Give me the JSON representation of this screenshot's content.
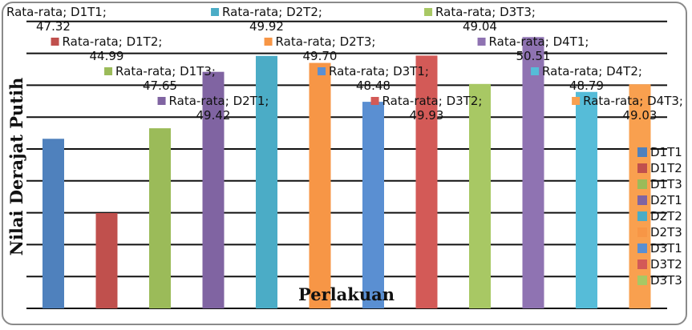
{
  "chart_data": {
    "type": "bar",
    "title": "",
    "xlabel": "Perlakuan",
    "ylabel": "Nilai Derajat Putih",
    "ylim": [
      42,
      51
    ],
    "grid": true,
    "label_prefix": "Rata-rata",
    "categories": [
      "D1T1",
      "D1T2",
      "D1T3",
      "D2T1",
      "D2T2",
      "D2T3",
      "D3T1",
      "D3T2",
      "D3T3",
      "D4T1",
      "D4T2",
      "D4T3"
    ],
    "values": [
      47.32,
      44.99,
      47.65,
      49.42,
      49.92,
      49.7,
      48.48,
      49.93,
      49.04,
      50.51,
      48.79,
      49.03
    ],
    "value_labels": [
      "47.32",
      "44.99",
      "47.65",
      "49.42",
      "49.92",
      "49.70",
      "48.48",
      "49.93",
      "49.04",
      "50.51",
      "48.79",
      "49.03"
    ],
    "colors": [
      "#4f81bd",
      "#c0504d",
      "#9bbb59",
      "#8064a2",
      "#4bacc6",
      "#f79646",
      "#5a8fd2",
      "#d35a57",
      "#a8c864",
      "#8f73b2",
      "#56bcd8",
      "#f9a04f"
    ],
    "legend": {
      "placement": "right",
      "entries": [
        "D1T1",
        "D1T2",
        "D1T3",
        "D2T1",
        "D2T2",
        "D2T3",
        "D3T1",
        "D3T2",
        "D3T3"
      ]
    }
  }
}
